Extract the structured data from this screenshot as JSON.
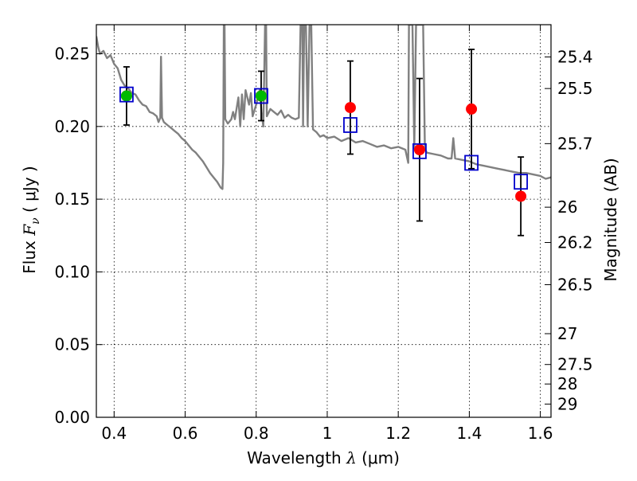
{
  "chart_data": {
    "type": "scatter",
    "xlabel": {
      "prefix": "Wavelength ",
      "symbol": "λ",
      "unit": " (μm)"
    },
    "ylabel": {
      "prefix": "Flux ",
      "symbol": "F",
      "subscript": "ν",
      "unit": " ( μJy )"
    },
    "ylabel_right": "Magnitude (AB)",
    "xlim": [
      0.35,
      1.63
    ],
    "ylim": [
      0.0,
      0.27
    ],
    "grid": true,
    "x_ticks": [
      {
        "value": 0.4,
        "label": "0.4"
      },
      {
        "value": 0.6,
        "label": "0.6"
      },
      {
        "value": 0.8,
        "label": "0.8"
      },
      {
        "value": 1.0,
        "label": "1"
      },
      {
        "value": 1.2,
        "label": "1.2"
      },
      {
        "value": 1.4,
        "label": "1.4"
      },
      {
        "value": 1.6,
        "label": "1.6"
      }
    ],
    "y_ticks": [
      {
        "value": 0.0,
        "label": "0.00"
      },
      {
        "value": 0.05,
        "label": "0.05"
      },
      {
        "value": 0.1,
        "label": "0.10"
      },
      {
        "value": 0.15,
        "label": "0.15"
      },
      {
        "value": 0.2,
        "label": "0.20"
      },
      {
        "value": 0.25,
        "label": "0.25"
      }
    ],
    "right_ticks": [
      {
        "flux": 0.2478,
        "label": "25.4"
      },
      {
        "flux": 0.2261,
        "label": "25.5"
      },
      {
        "flux": 0.1882,
        "label": "25.7"
      },
      {
        "flux": 0.1445,
        "label": "26"
      },
      {
        "flux": 0.1202,
        "label": "26.2"
      },
      {
        "flux": 0.0912,
        "label": "26.5"
      },
      {
        "flux": 0.0575,
        "label": "27"
      },
      {
        "flux": 0.0363,
        "label": "27.5"
      },
      {
        "flux": 0.0229,
        "label": "28"
      },
      {
        "flux": 0.0091,
        "label": "29"
      }
    ],
    "series": [
      {
        "kind": "observed",
        "color": "#ff0000",
        "points": [
          {
            "x": 0.435,
            "y": 0.221,
            "yerr": 0.02
          },
          {
            "x": 0.814,
            "y": 0.221,
            "yerr": 0.017
          },
          {
            "x": 1.065,
            "y": 0.213,
            "yerr": 0.032
          },
          {
            "x": 1.26,
            "y": 0.184,
            "yerr": 0.049
          },
          {
            "x": 1.406,
            "y": 0.212,
            "yerr": 0.041
          },
          {
            "x": 1.545,
            "y": 0.152,
            "yerr": 0.027
          }
        ]
      },
      {
        "kind": "observed-optical",
        "color": "#00bb00",
        "points": [
          {
            "x": 0.435,
            "y": 0.221
          },
          {
            "x": 0.814,
            "y": 0.221
          }
        ]
      },
      {
        "kind": "model-bandpass",
        "color": "#0000cc",
        "points": [
          {
            "x": 0.435,
            "y": 0.222
          },
          {
            "x": 0.814,
            "y": 0.221
          },
          {
            "x": 1.065,
            "y": 0.201
          },
          {
            "x": 1.26,
            "y": 0.183
          },
          {
            "x": 1.406,
            "y": 0.175
          },
          {
            "x": 1.545,
            "y": 0.162
          }
        ]
      }
    ],
    "sed_spectrum": {
      "color": "#808080",
      "points": [
        [
          0.35,
          0.262
        ],
        [
          0.355,
          0.255
        ],
        [
          0.36,
          0.25
        ],
        [
          0.37,
          0.252
        ],
        [
          0.38,
          0.247
        ],
        [
          0.39,
          0.249
        ],
        [
          0.4,
          0.243
        ],
        [
          0.41,
          0.24
        ],
        [
          0.42,
          0.232
        ],
        [
          0.43,
          0.228
        ],
        [
          0.44,
          0.226
        ],
        [
          0.45,
          0.223
        ],
        [
          0.46,
          0.222
        ],
        [
          0.47,
          0.218
        ],
        [
          0.48,
          0.215
        ],
        [
          0.49,
          0.214
        ],
        [
          0.5,
          0.21
        ],
        [
          0.51,
          0.209
        ],
        [
          0.52,
          0.207
        ],
        [
          0.525,
          0.203
        ],
        [
          0.53,
          0.206
        ],
        [
          0.532,
          0.248
        ],
        [
          0.535,
          0.206
        ],
        [
          0.54,
          0.203
        ],
        [
          0.55,
          0.201
        ],
        [
          0.56,
          0.199
        ],
        [
          0.57,
          0.197
        ],
        [
          0.58,
          0.195
        ],
        [
          0.59,
          0.192
        ],
        [
          0.6,
          0.19
        ],
        [
          0.61,
          0.187
        ],
        [
          0.62,
          0.184
        ],
        [
          0.63,
          0.182
        ],
        [
          0.64,
          0.179
        ],
        [
          0.65,
          0.176
        ],
        [
          0.66,
          0.172
        ],
        [
          0.67,
          0.168
        ],
        [
          0.68,
          0.165
        ],
        [
          0.69,
          0.162
        ],
        [
          0.695,
          0.16
        ],
        [
          0.7,
          0.158
        ],
        [
          0.705,
          0.157
        ],
        [
          0.707,
          0.175
        ],
        [
          0.709,
          0.27
        ],
        [
          0.711,
          0.27
        ],
        [
          0.713,
          0.205
        ],
        [
          0.72,
          0.202
        ],
        [
          0.73,
          0.205
        ],
        [
          0.735,
          0.21
        ],
        [
          0.74,
          0.205
        ],
        [
          0.75,
          0.22
        ],
        [
          0.755,
          0.2
        ],
        [
          0.76,
          0.222
        ],
        [
          0.765,
          0.205
        ],
        [
          0.77,
          0.225
        ],
        [
          0.78,
          0.215
        ],
        [
          0.785,
          0.223
        ],
        [
          0.79,
          0.207
        ],
        [
          0.8,
          0.215
        ],
        [
          0.81,
          0.225
        ],
        [
          0.815,
          0.21
        ],
        [
          0.82,
          0.2
        ],
        [
          0.825,
          0.27
        ],
        [
          0.828,
          0.27
        ],
        [
          0.83,
          0.207
        ],
        [
          0.84,
          0.212
        ],
        [
          0.85,
          0.21
        ],
        [
          0.86,
          0.208
        ],
        [
          0.87,
          0.211
        ],
        [
          0.88,
          0.206
        ],
        [
          0.89,
          0.208
        ],
        [
          0.9,
          0.206
        ],
        [
          0.91,
          0.205
        ],
        [
          0.92,
          0.206
        ],
        [
          0.925,
          0.27
        ],
        [
          0.93,
          0.27
        ],
        [
          0.932,
          0.2
        ],
        [
          0.935,
          0.27
        ],
        [
          0.94,
          0.27
        ],
        [
          0.945,
          0.2
        ],
        [
          0.95,
          0.27
        ],
        [
          0.955,
          0.27
        ],
        [
          0.96,
          0.198
        ],
        [
          0.97,
          0.196
        ],
        [
          0.98,
          0.193
        ],
        [
          0.99,
          0.194
        ],
        [
          1.0,
          0.192
        ],
        [
          1.02,
          0.193
        ],
        [
          1.04,
          0.19
        ],
        [
          1.06,
          0.192
        ],
        [
          1.08,
          0.189
        ],
        [
          1.1,
          0.19
        ],
        [
          1.12,
          0.188
        ],
        [
          1.14,
          0.186
        ],
        [
          1.16,
          0.187
        ],
        [
          1.18,
          0.185
        ],
        [
          1.2,
          0.186
        ],
        [
          1.22,
          0.184
        ],
        [
          1.228,
          0.175
        ],
        [
          1.23,
          0.27
        ],
        [
          1.24,
          0.27
        ],
        [
          1.245,
          0.185
        ],
        [
          1.25,
          0.27
        ],
        [
          1.26,
          0.27
        ],
        [
          1.27,
          0.27
        ],
        [
          1.275,
          0.185
        ],
        [
          1.28,
          0.182
        ],
        [
          1.3,
          0.181
        ],
        [
          1.32,
          0.18
        ],
        [
          1.34,
          0.178
        ],
        [
          1.35,
          0.178
        ],
        [
          1.355,
          0.192
        ],
        [
          1.36,
          0.178
        ],
        [
          1.38,
          0.177
        ],
        [
          1.4,
          0.176
        ],
        [
          1.42,
          0.174
        ],
        [
          1.44,
          0.173
        ],
        [
          1.46,
          0.172
        ],
        [
          1.48,
          0.171
        ],
        [
          1.5,
          0.17
        ],
        [
          1.52,
          0.169
        ],
        [
          1.54,
          0.168
        ],
        [
          1.56,
          0.168
        ],
        [
          1.58,
          0.167
        ],
        [
          1.6,
          0.166
        ],
        [
          1.615,
          0.164
        ],
        [
          1.63,
          0.165
        ]
      ]
    }
  }
}
